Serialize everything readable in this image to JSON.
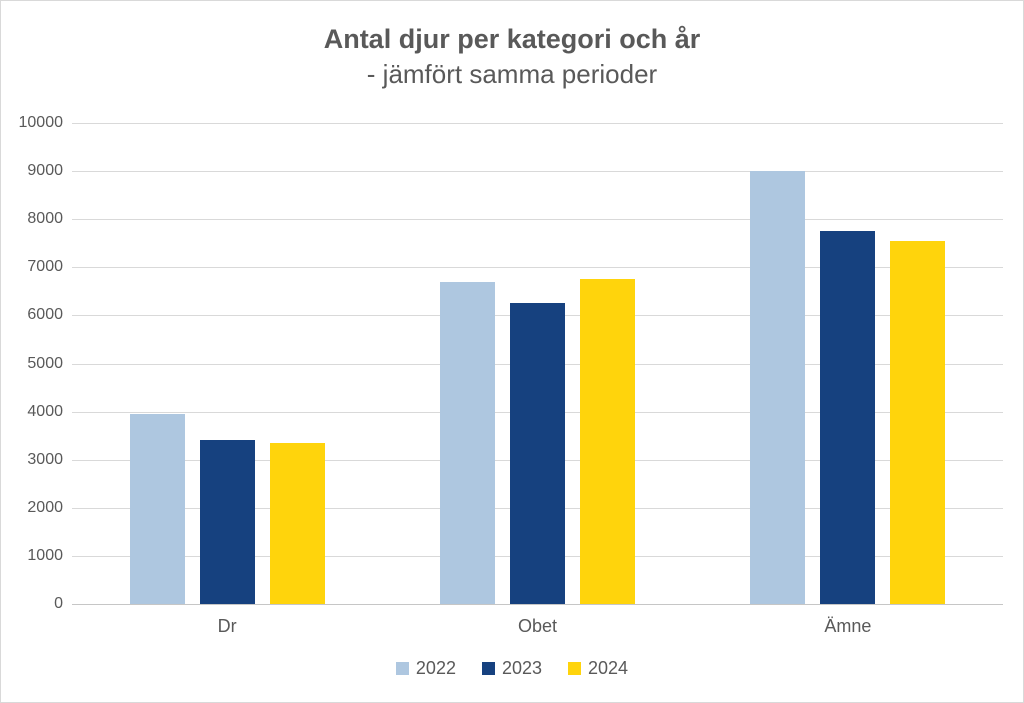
{
  "chart_data": {
    "type": "bar",
    "title": "Antal djur per kategori och år",
    "subtitle": "- jämfört samma perioder",
    "categories": [
      "Dr",
      "Obet",
      "Ämne"
    ],
    "series": [
      {
        "name": "2022",
        "color": "#aec7e0",
        "values": [
          3950,
          6700,
          9000
        ]
      },
      {
        "name": "2023",
        "color": "#16417f",
        "values": [
          3400,
          6250,
          7750
        ]
      },
      {
        "name": "2024",
        "color": "#ffd40c",
        "values": [
          3350,
          6750,
          7550
        ]
      }
    ],
    "ylim": [
      0,
      10000
    ],
    "ytick_step": 1000,
    "ytick_labels": [
      "0",
      "1000",
      "2000",
      "3000",
      "4000",
      "5000",
      "6000",
      "7000",
      "8000",
      "9000",
      "10000"
    ],
    "grid": true,
    "legend_position": "bottom",
    "legend_entries": [
      "2022",
      "2023",
      "2024"
    ]
  },
  "colors": {
    "text": "#595959",
    "gridline": "#d9d9d9",
    "axis_line": "#c6c6c6",
    "background": "#ffffff",
    "border": "#d9d9d9"
  }
}
